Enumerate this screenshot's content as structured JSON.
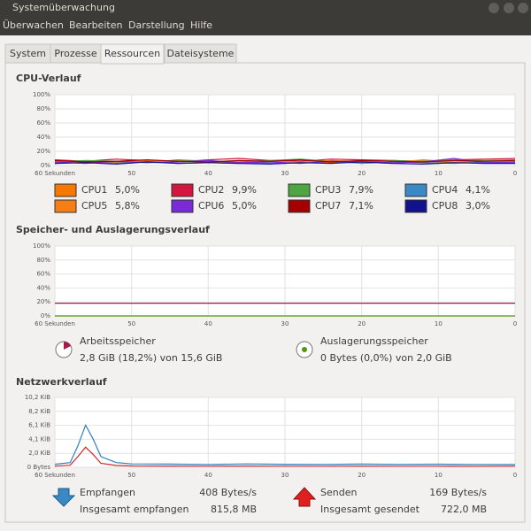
{
  "window": {
    "title": "Systemüberwachung",
    "menu": [
      "Überwachen",
      "Bearbeiten",
      "Darstellung",
      "Hilfe"
    ]
  },
  "tabs": [
    "System",
    "Prozesse",
    "Ressourcen",
    "Dateisysteme"
  ],
  "active_tab": 2,
  "chart_data": [
    {
      "type": "line",
      "title": "CPU-Verlauf",
      "x": [
        60,
        56,
        52,
        48,
        44,
        40,
        36,
        32,
        28,
        24,
        20,
        16,
        12,
        8,
        4,
        0
      ],
      "xlim": [
        60,
        0
      ],
      "xticks": [
        {
          "value": 60,
          "label": "60 Sekunden"
        },
        50,
        40,
        30,
        20,
        10,
        0
      ],
      "ylim": [
        0,
        100
      ],
      "yticks": [
        {
          "value": 0,
          "label": "0%"
        },
        {
          "value": 20,
          "label": "20%"
        },
        {
          "value": 40,
          "label": "40%"
        },
        {
          "value": 60,
          "label": "60%"
        },
        {
          "value": 80,
          "label": "80%"
        },
        {
          "value": 100,
          "label": "100%"
        }
      ],
      "grid": true,
      "legend": true,
      "series": [
        {
          "name": "CPU1",
          "color": "#f57900",
          "current": {
            "value": 5.0,
            "label": "5,0%"
          },
          "values": [
            4,
            6,
            3,
            5,
            7,
            4,
            3,
            5,
            6,
            4,
            5,
            3,
            6,
            4,
            5,
            5
          ]
        },
        {
          "name": "CPU2",
          "color": "#d3163f",
          "current": {
            "value": 9.9,
            "label": "9,9%"
          },
          "values": [
            8,
            6,
            9,
            7,
            5,
            8,
            10,
            7,
            6,
            9,
            8,
            7,
            6,
            8,
            9,
            9.9
          ]
        },
        {
          "name": "CPU3",
          "color": "#4fa444",
          "current": {
            "value": 7.9,
            "label": "7,9%"
          },
          "values": [
            5,
            7,
            6,
            4,
            8,
            6,
            5,
            7,
            9,
            6,
            5,
            7,
            6,
            8,
            7,
            7.9
          ]
        },
        {
          "name": "CPU4",
          "color": "#3a88c4",
          "current": {
            "value": 4.1,
            "label": "4,1%"
          },
          "values": [
            3,
            5,
            4,
            6,
            3,
            4,
            5,
            3,
            4,
            6,
            3,
            5,
            4,
            3,
            5,
            4.1
          ]
        },
        {
          "name": "CPU5",
          "color": "#f57f17",
          "current": {
            "value": 5.8,
            "label": "5,8%"
          },
          "values": [
            6,
            4,
            5,
            7,
            5,
            6,
            4,
            6,
            5,
            7,
            6,
            4,
            8,
            5,
            6,
            5.8
          ]
        },
        {
          "name": "CPU6",
          "color": "#7b2bd6",
          "current": {
            "value": 5.0,
            "label": "5,0%"
          },
          "values": [
            5,
            3,
            6,
            4,
            5,
            7,
            4,
            5,
            3,
            6,
            5,
            4,
            5,
            10,
            4,
            5
          ]
        },
        {
          "name": "CPU7",
          "color": "#a40000",
          "current": {
            "value": 7.1,
            "label": "7,1%"
          },
          "values": [
            7,
            5,
            6,
            8,
            6,
            5,
            7,
            6,
            8,
            5,
            7,
            6,
            5,
            7,
            6,
            7.1
          ]
        },
        {
          "name": "CPU8",
          "color": "#12128c",
          "current": {
            "value": 3.0,
            "label": "3,0%"
          },
          "values": [
            3,
            4,
            2,
            5,
            3,
            4,
            3,
            2,
            4,
            3,
            5,
            3,
            2,
            4,
            3,
            3
          ]
        }
      ]
    },
    {
      "type": "line",
      "title": "Speicher- und Auslagerungsverlauf",
      "x": [
        60,
        0
      ],
      "xlim": [
        60,
        0
      ],
      "xticks": [
        {
          "value": 60,
          "label": "60 Sekunden"
        },
        50,
        40,
        30,
        20,
        10,
        0
      ],
      "ylim": [
        0,
        100
      ],
      "yticks": [
        {
          "value": 0,
          "label": "0%"
        },
        {
          "value": 20,
          "label": "20%"
        },
        {
          "value": 40,
          "label": "40%"
        },
        {
          "value": 60,
          "label": "60%"
        },
        {
          "value": 80,
          "label": "80%"
        },
        {
          "value": 100,
          "label": "100%"
        }
      ],
      "grid": true,
      "legend": false,
      "series": [
        {
          "name": "Arbeitsspeicher",
          "color": "#a8194d",
          "values": [
            18.2,
            18.2
          ]
        },
        {
          "name": "Auslagerungsspeicher",
          "color": "#4e9a06",
          "values": [
            0,
            0
          ]
        }
      ]
    },
    {
      "type": "line",
      "title": "Netzwerkverlauf",
      "x": [
        60,
        58,
        57,
        56,
        55,
        54,
        52,
        50,
        45,
        40,
        35,
        30,
        25,
        20,
        15,
        10,
        5,
        0
      ],
      "xlim": [
        60,
        0
      ],
      "xticks": [
        {
          "value": 60,
          "label": "60 Sekunden"
        },
        50,
        40,
        30,
        20,
        10,
        0
      ],
      "ylim": [
        0,
        10445
      ],
      "yticks": [
        {
          "value": 0,
          "label": "0 Bytes"
        },
        {
          "value": 2089,
          "label": "2,0 KiB"
        },
        {
          "value": 4178,
          "label": "4,1 KiB"
        },
        {
          "value": 6267,
          "label": "6,1 KiB"
        },
        {
          "value": 8356,
          "label": "8,2 KiB"
        },
        {
          "value": 10445,
          "label": "10,2 KiB"
        }
      ],
      "grid": true,
      "legend": false,
      "series": [
        {
          "name": "Empfangen",
          "color": "#2d7fc1",
          "values": [
            450,
            700,
            3200,
            6300,
            4200,
            1600,
            700,
            500,
            480,
            420,
            500,
            450,
            430,
            470,
            440,
            460,
            420,
            408
          ]
        },
        {
          "name": "Senden",
          "color": "#d62525",
          "values": [
            170,
            300,
            1600,
            3000,
            1900,
            600,
            260,
            200,
            190,
            170,
            180,
            175,
            170,
            185,
            170,
            175,
            165,
            169
          ]
        }
      ]
    }
  ],
  "memory_info": {
    "ram": "2,8 GiB (18,2%) von 15,6 GiB",
    "swap": "0 Bytes (0,0%) von 2,0 GiB"
  },
  "network_info": {
    "received_rate": "408 Bytes/s",
    "total_received_label": "Insgesamt empfangen",
    "total_received": "815,8 MB",
    "sent_rate": "169 Bytes/s",
    "total_sent_label": "Insgesamt gesendet",
    "total_sent": "722,0 MB"
  }
}
